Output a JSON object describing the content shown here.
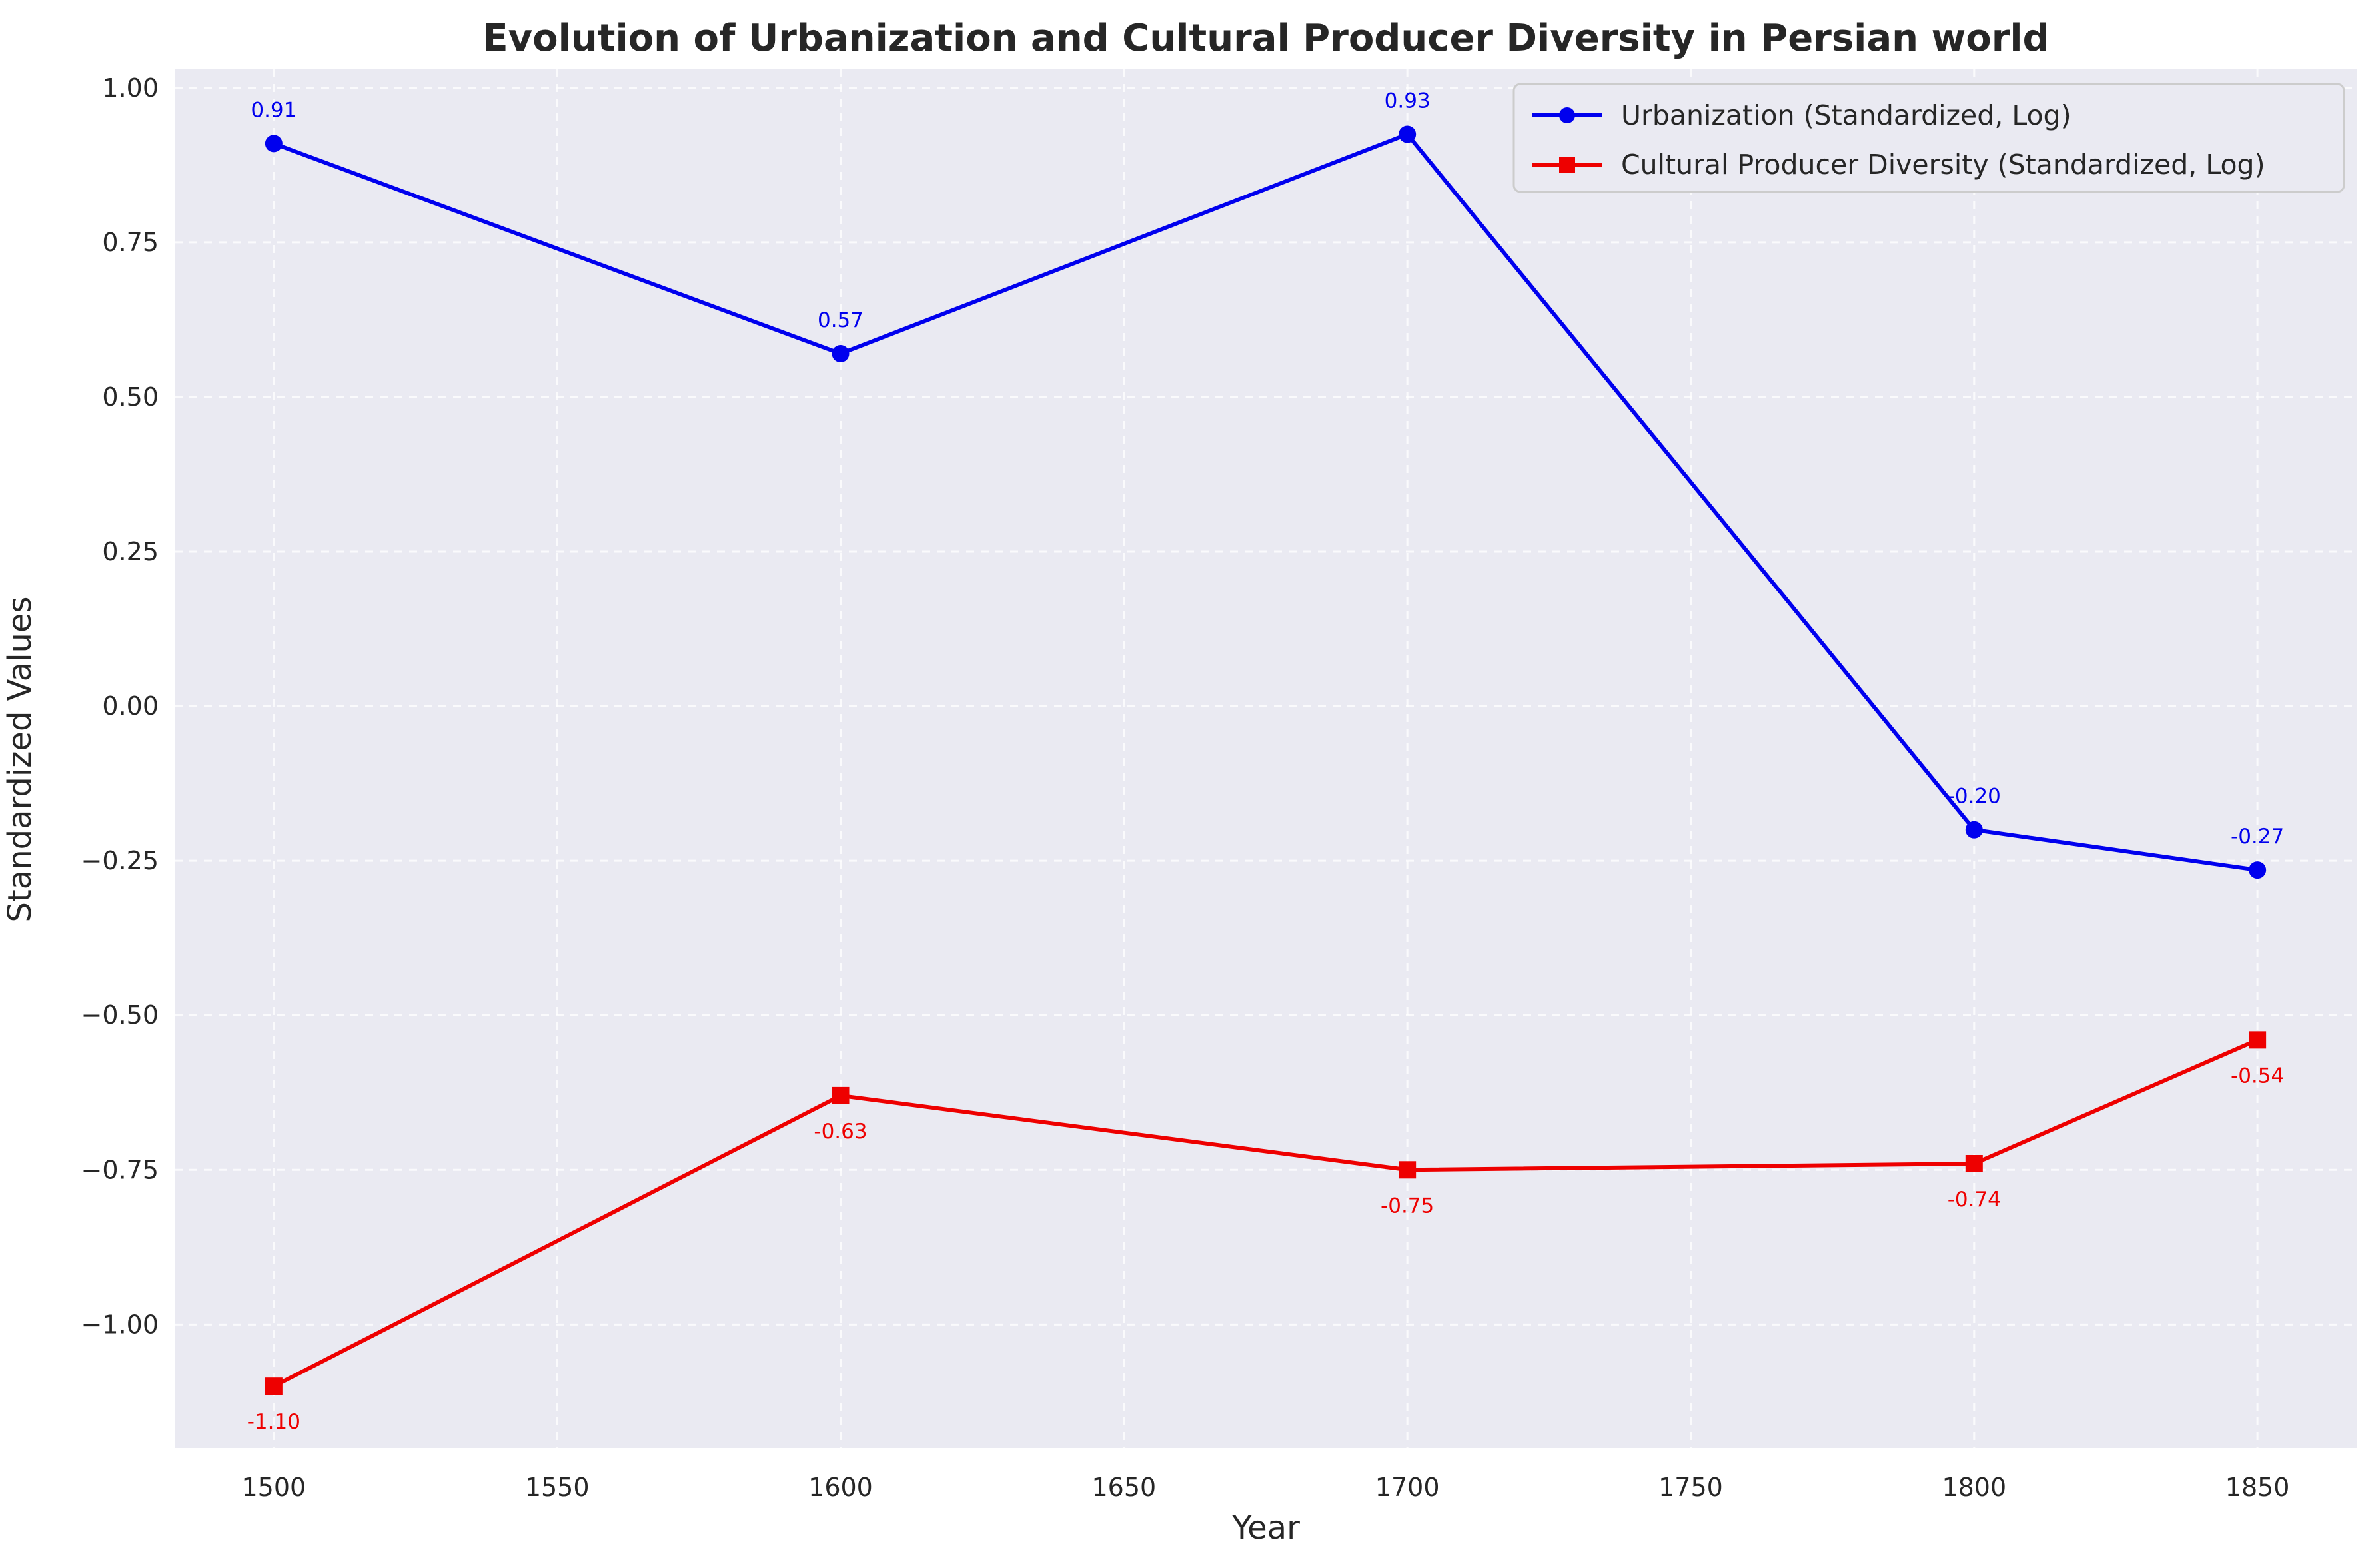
{
  "chart_data": {
    "type": "line",
    "title": "Evolution of Urbanization and Cultural Producer Diversity in Persian world",
    "xlabel": "Year",
    "ylabel": "Standardized Values",
    "x": [
      1500,
      1600,
      1700,
      1800,
      1850
    ],
    "xlim": [
      1482.5,
      1867.5
    ],
    "ylim": [
      -1.2,
      1.03
    ],
    "xticks": [
      1500,
      1550,
      1600,
      1650,
      1700,
      1750,
      1800,
      1850
    ],
    "yticks": [
      1.0,
      0.75,
      0.5,
      0.25,
      0.0,
      -0.25,
      -0.5,
      -0.75,
      -1.0
    ],
    "ytick_labels": [
      "1.00",
      "0.75",
      "0.50",
      "0.25",
      "0.00",
      "−0.25",
      "−0.50",
      "−0.75",
      "−1.00"
    ],
    "grid": true,
    "legend_position": "top-right",
    "series": [
      {
        "name": "Urbanization (Standardized, Log)",
        "values": [
          0.91,
          0.57,
          0.925,
          -0.2,
          -0.265
        ],
        "labels": [
          "0.91",
          "0.57",
          "0.93",
          "-0.20",
          "-0.27"
        ],
        "color": "#0000ee",
        "marker": "circle",
        "label_position": "above"
      },
      {
        "name": "Cultural Producer Diversity (Standardized, Log)",
        "values": [
          -1.1,
          -0.63,
          -0.75,
          -0.74,
          -0.54
        ],
        "labels": [
          "-1.10",
          "-0.63",
          "-0.75",
          "-0.74",
          "-0.54"
        ],
        "color": "#ee0000",
        "marker": "square",
        "label_position": "below"
      }
    ],
    "colors": {
      "plot_background": "#eaeaf2",
      "grid": "#ffffff"
    }
  }
}
